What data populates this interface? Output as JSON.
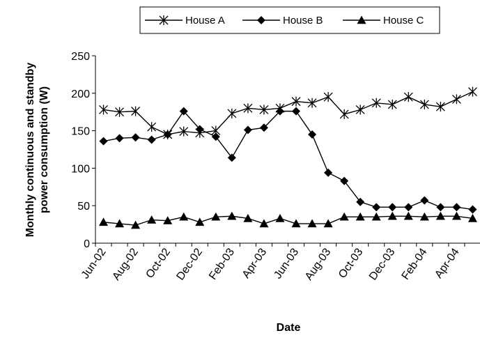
{
  "chart_data": {
    "type": "line",
    "title": "",
    "xlabel": "Date",
    "ylabel": "Monthly continuous and standby power consumption (W)",
    "ylabel_lines": [
      "Monthly continuous and standby",
      "power consumption (W)"
    ],
    "ylim": [
      0,
      250
    ],
    "yticks": [
      "0",
      "50",
      "100",
      "150",
      "200",
      "250"
    ],
    "grid": false,
    "legend_position": "top",
    "x": [
      "Jun-02",
      "Jul-02",
      "Aug-02",
      "Sep-02",
      "Oct-02",
      "Nov-02",
      "Dec-02",
      "Jan-03",
      "Feb-03",
      "Mar-03",
      "Apr-03",
      "May-03",
      "Jun-03",
      "Jul-03",
      "Aug-03",
      "Sep-03",
      "Oct-03",
      "Nov-03",
      "Dec-03",
      "Jan-04",
      "Feb-04",
      "Mar-04",
      "Apr-04",
      "May-04"
    ],
    "xtick_labels": [
      "Jun-02",
      "Aug-02",
      "Oct-02",
      "Dec-02",
      "Feb-03",
      "Apr-03",
      "Jun-03",
      "Aug-03",
      "Oct-03",
      "Dec-03",
      "Feb-04",
      "Apr-04"
    ],
    "series": [
      {
        "name": "House A",
        "marker": "asterisk",
        "values": [
          178,
          175,
          176,
          155,
          145,
          149,
          147,
          150,
          173,
          180,
          178,
          180,
          189,
          187,
          195,
          172,
          178,
          187,
          185,
          195,
          185,
          182,
          192,
          202
        ]
      },
      {
        "name": "House B",
        "marker": "diamond",
        "values": [
          136,
          140,
          141,
          138,
          145,
          176,
          152,
          142,
          114,
          151,
          154,
          176,
          176,
          145,
          94,
          83,
          55,
          48,
          48,
          48,
          57,
          48,
          48,
          45
        ]
      },
      {
        "name": "House C",
        "marker": "triangle",
        "values": [
          28,
          26,
          24,
          31,
          30,
          35,
          28,
          35,
          36,
          33,
          26,
          33,
          26,
          26,
          26,
          35,
          35,
          35,
          36,
          36,
          35,
          36,
          36,
          33
        ]
      }
    ]
  }
}
